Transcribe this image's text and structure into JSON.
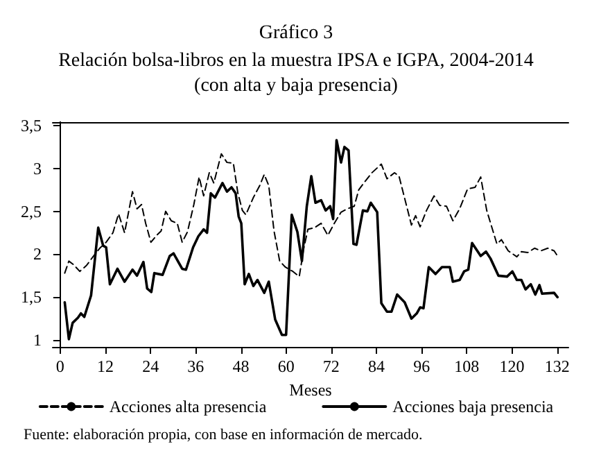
{
  "chart_data": {
    "type": "line",
    "title": "Gráfico 3",
    "subtitle": "Relación bolsa-libros en la muestra IPSA e IGPA, 2004-2014\n(con alta y baja presencia)",
    "xlabel": "Meses",
    "annotations": [
      "Fuente: elaboración propia, con base en información de mercado."
    ],
    "xlim": [
      -2,
      135
    ],
    "xticks": [
      0,
      12,
      24,
      36,
      48,
      60,
      72,
      84,
      96,
      108,
      120,
      132
    ],
    "ylim": [
      0.92,
      3.54
    ],
    "yticks": [
      1,
      {
        "value": 1.5,
        "label": "1,5"
      },
      2,
      {
        "value": 2.5,
        "label": "2,5"
      },
      3,
      {
        "value": 3.5,
        "label": "3,5"
      }
    ],
    "grid": false,
    "legend": "bottom",
    "marker": "none",
    "series": [
      {
        "name": "Acciones alta presencia",
        "color": "#000000",
        "line_style": "dashed",
        "x": [
          1.2,
          2.3,
          3.5,
          5.2,
          7,
          8.7,
          10.5,
          12.2,
          14,
          15.5,
          17.1,
          19.2,
          20.4,
          21.6,
          22.7,
          24.1,
          25.6,
          26.8,
          28,
          29.5,
          31.1,
          32.4,
          33.8,
          35.5,
          36.9,
          38.1,
          39.6,
          40.8,
          42.8,
          44.3,
          46,
          47.2,
          48.4,
          49.3,
          51.3,
          53,
          54.2,
          55.4,
          56.8,
          58.3,
          59.8,
          61.8,
          63.5,
          64.7,
          65.8,
          67.6,
          69.3,
          71.1,
          72.8,
          74.6,
          76.3,
          78.1,
          79.3,
          81,
          82.8,
          85.3,
          86.8,
          88.8,
          90,
          93.3,
          94.4,
          95.6,
          97.3,
          99.3,
          100.8,
          102.6,
          104.3,
          106.1,
          108.2,
          110.2,
          111.7,
          113.3,
          116,
          117.2,
          119,
          121.3,
          122.5,
          124.2,
          126,
          127.7,
          129.5,
          131.2,
          132.1
        ],
        "values": [
          1.78,
          1.92,
          1.88,
          1.8,
          1.87,
          1.97,
          2.07,
          2.14,
          2.25,
          2.47,
          2.25,
          2.73,
          2.53,
          2.58,
          2.36,
          2.14,
          2.22,
          2.27,
          2.5,
          2.39,
          2.36,
          2.14,
          2.26,
          2.58,
          2.9,
          2.68,
          2.95,
          2.83,
          3.17,
          3.07,
          3.06,
          2.71,
          2.51,
          2.46,
          2.66,
          2.8,
          2.93,
          2.8,
          2.27,
          1.92,
          1.85,
          1.8,
          1.74,
          2.07,
          2.29,
          2.31,
          2.36,
          2.22,
          2.36,
          2.49,
          2.53,
          2.56,
          2.75,
          2.85,
          2.95,
          3.05,
          2.88,
          2.95,
          2.91,
          2.34,
          2.45,
          2.32,
          2.51,
          2.68,
          2.57,
          2.56,
          2.39,
          2.53,
          2.76,
          2.78,
          2.9,
          2.51,
          2.12,
          2.17,
          2.04,
          1.97,
          2.03,
          2.02,
          2.07,
          2.04,
          2.07,
          2.04,
          1.98
        ]
      },
      {
        "name": "Acciones baja presencia",
        "color": "#000000",
        "line_style": "solid",
        "x": [
          1.2,
          2.3,
          3.3,
          4.7,
          5.5,
          6.4,
          8.2,
          10.1,
          11.4,
          12.2,
          13.2,
          15.2,
          17.1,
          19.2,
          20.4,
          22.1,
          23.1,
          24.2,
          25,
          27.2,
          29.1,
          30.1,
          32.4,
          33.4,
          35.3,
          36.7,
          38.1,
          39,
          40,
          41.1,
          43.1,
          44.3,
          45.5,
          46.6,
          47.4,
          48.1,
          49,
          50.1,
          51.3,
          52.4,
          54.2,
          55.4,
          57.1,
          58.9,
          60,
          61.5,
          63,
          64.2,
          65.5,
          66.7,
          67.8,
          69.3,
          70.5,
          71.7,
          72.5,
          73.4,
          74.6,
          75.5,
          76.6,
          77.9,
          78.7,
          80.4,
          81.6,
          82.5,
          84.2,
          85.3,
          86.8,
          88,
          89.5,
          91.5,
          93.3,
          94.7,
          95.6,
          96.5,
          97.9,
          99.7,
          101.4,
          103.5,
          104.3,
          106.1,
          107.3,
          108.4,
          109.4,
          111.7,
          113.1,
          114.3,
          116.4,
          118.7,
          120.1,
          121.3,
          122.5,
          123.6,
          125,
          126.2,
          127.3,
          128,
          131.2,
          132.1
        ],
        "values": [
          1.44,
          1.01,
          1.2,
          1.26,
          1.31,
          1.27,
          1.52,
          2.31,
          2.1,
          2.08,
          1.65,
          1.83,
          1.68,
          1.82,
          1.75,
          1.91,
          1.6,
          1.56,
          1.78,
          1.76,
          1.98,
          2.01,
          1.83,
          1.82,
          2.08,
          2.21,
          2.29,
          2.25,
          2.71,
          2.66,
          2.83,
          2.73,
          2.78,
          2.71,
          2.44,
          2.36,
          1.65,
          1.77,
          1.63,
          1.7,
          1.55,
          1.68,
          1.24,
          1.06,
          1.06,
          2.46,
          2.26,
          1.92,
          2.56,
          2.91,
          2.6,
          2.63,
          2.51,
          2.56,
          2.41,
          3.33,
          3.07,
          3.25,
          3.21,
          2.12,
          2.11,
          2.51,
          2.5,
          2.6,
          2.49,
          1.43,
          1.33,
          1.33,
          1.53,
          1.44,
          1.25,
          1.31,
          1.38,
          1.37,
          1.85,
          1.77,
          1.85,
          1.85,
          1.68,
          1.7,
          1.8,
          1.82,
          2.13,
          1.98,
          2.03,
          1.95,
          1.75,
          1.74,
          1.8,
          1.7,
          1.7,
          1.59,
          1.65,
          1.53,
          1.64,
          1.54,
          1.55,
          1.5
        ]
      }
    ]
  }
}
